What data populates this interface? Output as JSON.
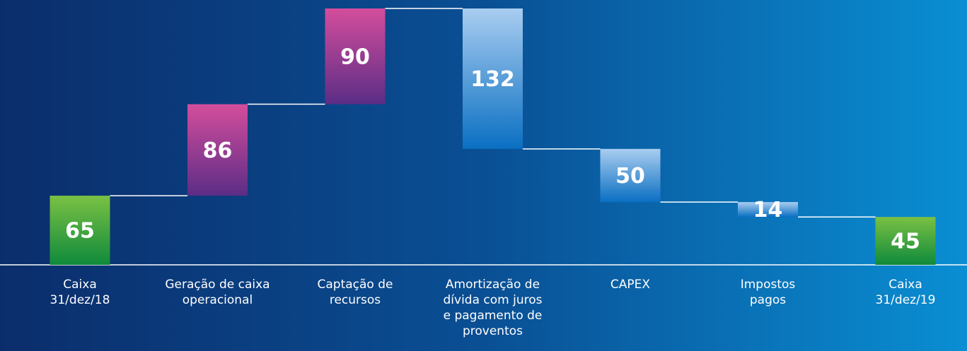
{
  "chart_data": {
    "type": "waterfall",
    "categories": [
      "Caixa\n31/dez/18",
      "Geração de caixa\noperacional",
      "Captação de\nrecursos",
      "Amortização de\ndívida com juros\ne pagamento de\nproventos",
      "CAPEX",
      "Impostos\npagos",
      "Caixa\n31/dez/19"
    ],
    "values": [
      65,
      86,
      90,
      132,
      50,
      14,
      45
    ],
    "measure": [
      "total",
      "increase",
      "increase",
      "decrease",
      "decrease",
      "decrease",
      "total"
    ],
    "colors": {
      "total": [
        "#7ac143",
        "#0f8a3c"
      ],
      "increase": [
        "#d44d9c",
        "#5b2d86"
      ],
      "decrease": [
        "#a9cdf0",
        "#0a6fc2"
      ]
    }
  }
}
